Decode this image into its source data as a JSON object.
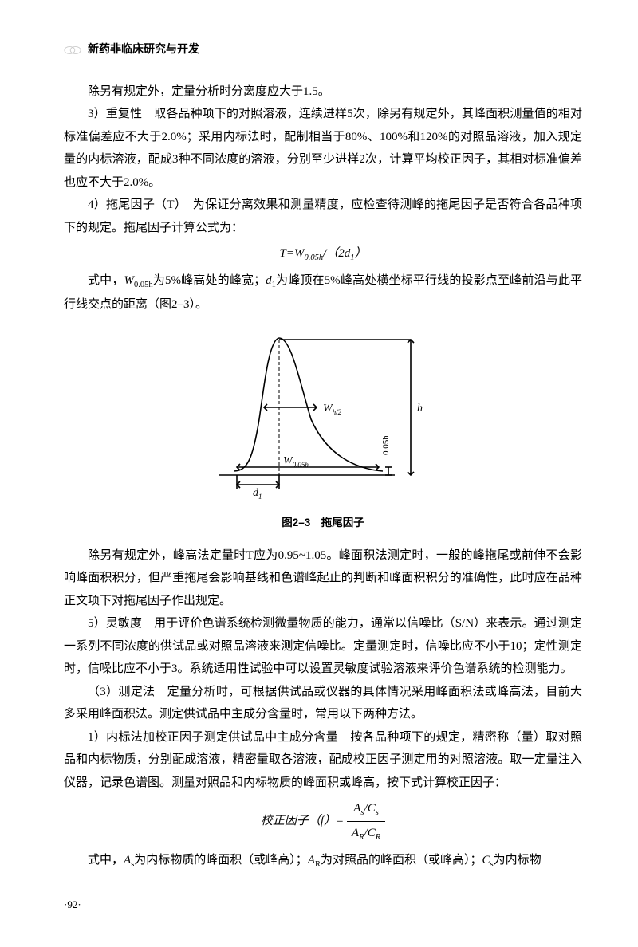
{
  "header": {
    "title": "新药非临床研究与开发"
  },
  "p1": "除另有规定外，定量分析时分离度应大于1.5。",
  "p2": "3）重复性　取各品种项下的对照溶液，连续进样5次，除另有规定外，其峰面积测量值的相对标准偏差应不大于2.0%；采用内标法时，配制相当于80%、100%和120%的对照品溶液，加入规定量的内标溶液，配成3种不同浓度的溶液，分别至少进样2次，计算平均校正因子，其相对标准偏差也应不大于2.0%。",
  "p3": "4）拖尾因子（T）　为保证分离效果和测量精度，应检查待测峰的拖尾因子是否符合各品种项下的规定。拖尾因子计算公式为：",
  "formula1_html": "<span class='it'>T</span>=<span class='it'>W</span><sub>0.05h</sub>/（2<span class='it'>d</span><sub>1</sub>）",
  "p4_html": "式中，<span class='it'>W</span><sub>0.05h</sub>为5%峰高处的峰宽；<span class='it'>d</span><sub>1</sub>为峰顶在5%峰高处横坐标平行线的投影点至峰前沿与此平行线交点的距离（图2–3）。",
  "figure": {
    "caption": "图2–3　拖尾因子",
    "labels": {
      "Wh2": "W",
      "Wh2_sub": "h/2",
      "W005": "W",
      "W005_sub": "0.05h",
      "d1": "d",
      "d1_sub": "1",
      "h": "h",
      "h005": "0.05h"
    },
    "stroke": "#000000",
    "stroke_width": 1.6
  },
  "p5": "除另有规定外，峰高法定量时T应为0.95~1.05。峰面积法测定时，一般的峰拖尾或前伸不会影响峰面积积分，但严重拖尾会影响基线和色谱峰起止的判断和峰面积积分的准确性，此时应在品种正文项下对拖尾因子作出规定。",
  "p6": "5）灵敏度　用于评价色谱系统检测微量物质的能力，通常以信噪比（S/N）来表示。通过测定一系列不同浓度的供试品或对照品溶液来测定信噪比。定量测定时，信噪比应不小于10；定性测定时，信噪比应不小于3。系统适用性试验中可以设置灵敏度试验溶液来评价色谱系统的检测能力。",
  "p7": "（3）测定法　定量分析时，可根据供试品或仪器的具体情况采用峰面积法或峰高法，目前大多采用峰面积法。测定供试品中主成分含量时，常用以下两种方法。",
  "p8": "1）内标法加校正因子测定供试品中主成分含量　按各品种项下的规定，精密称（量）取对照品和内标物质，分别配成溶液，精密量取各溶液，配成校正因子测定用的对照溶液。取一定量注入仪器，记录色谱图。测量对照品和内标物质的峰面积或峰高，按下式计算校正因子：",
  "formula2_label": "校正因子（<span class='it'>f</span>）=",
  "formula2_num": "<span class='it'>A</span><sub>s</sub>/<span class='it'>C</span><sub>s</sub>",
  "formula2_den": "<span class='it'>A</span><sub>R</sub>/<span class='it'>C</span><sub>R</sub>",
  "p9_html": "式中，<span class='it'>A</span><sub>s</sub>为内标物质的峰面积（或峰高）；<span class='it'>A</span><sub>R</sub>为对照品的峰面积（或峰高）；<span class='it'>C</span><sub>s</sub>为内标物",
  "page_num": "·92·"
}
